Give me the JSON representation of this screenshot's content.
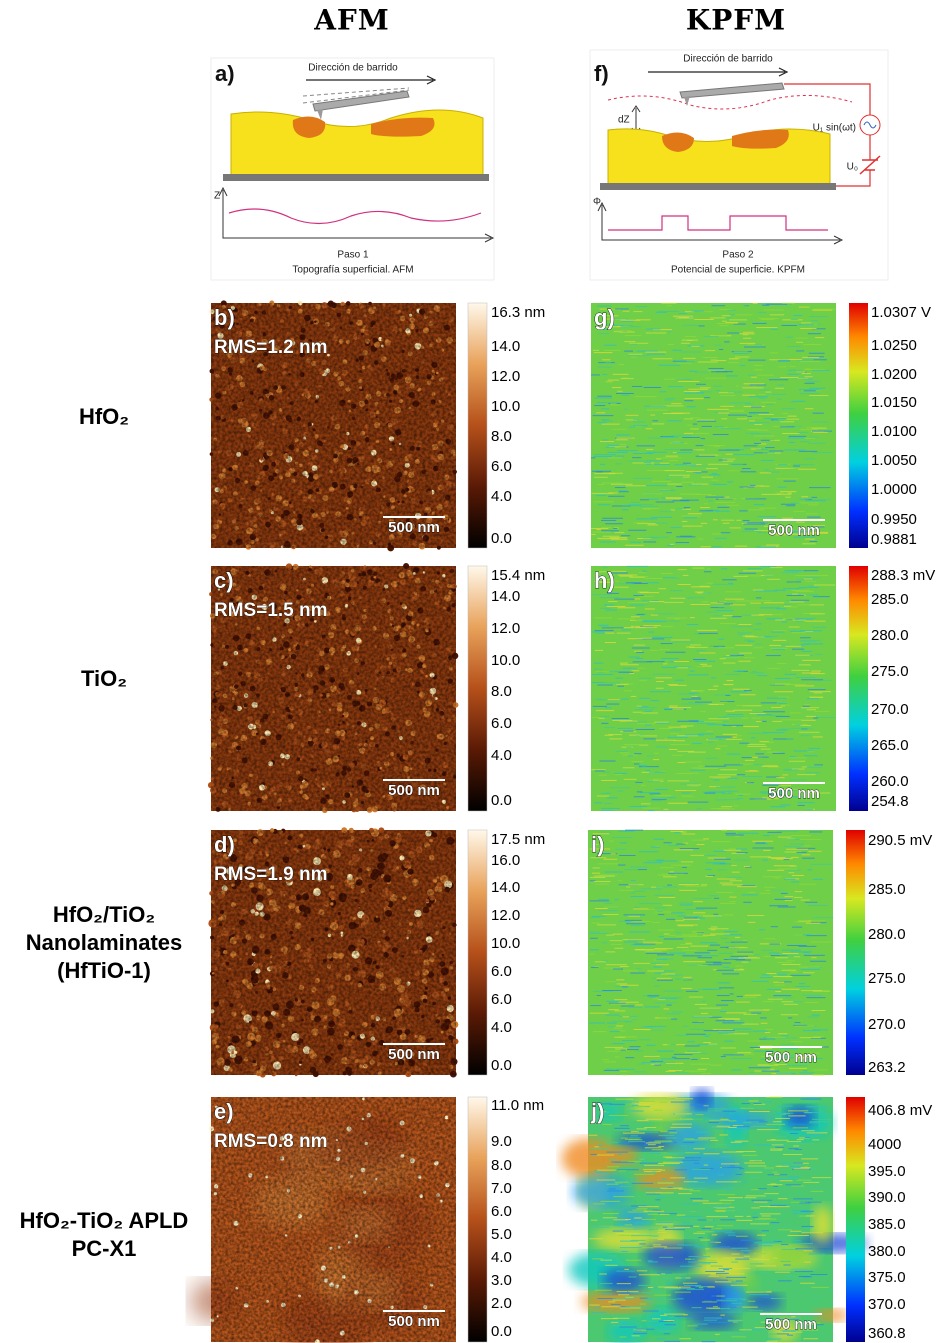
{
  "columns": [
    "AFM",
    "KPFM"
  ],
  "schematics": [
    {
      "label": "a)",
      "scan_direction": "Dirección de barrido",
      "axis_label": "Z",
      "caption": [
        "Paso 1",
        "Topografía superficial. AFM"
      ]
    },
    {
      "label": "f)",
      "scan_direction": "Dirección de barrido",
      "axis_label": "Φ",
      "gap_label": "dZ",
      "ac_label": "U₁ sin(ωt)",
      "dc_label": "U₀",
      "caption": [
        "Paso 2",
        "Potencial de superficie. KPFM"
      ]
    }
  ],
  "rows": [
    {
      "material": [
        "HfO₂"
      ],
      "afm": {
        "label": "b)",
        "rms": "RMS=1.2 nm",
        "scale_bar": "500 nm",
        "colorbar": [
          "16.3 nm",
          "14.0",
          "12.0",
          "10.0",
          "8.0",
          "6.0",
          "4.0",
          "0.0"
        ]
      },
      "kpfm": {
        "label": "g)",
        "scale_bar": "500 nm",
        "colorbar": [
          "1.0307 V",
          "1.0250",
          "1.0200",
          "1.0150",
          "1.0100",
          "1.0050",
          "1.0000",
          "0.9950",
          "0.9881"
        ]
      }
    },
    {
      "material": [
        "TiO₂"
      ],
      "afm": {
        "label": "c)",
        "rms": "RMS=1.5 nm",
        "scale_bar": "500 nm",
        "colorbar": [
          "15.4 nm",
          "14.0",
          "12.0",
          "10.0",
          "8.0",
          "6.0",
          "4.0",
          "0.0"
        ]
      },
      "kpfm": {
        "label": "h)",
        "scale_bar": "500 nm",
        "colorbar": [
          "288.3 mV",
          "285.0",
          "280.0",
          "275.0",
          "270.0",
          "265.0",
          "260.0",
          "254.8"
        ]
      }
    },
    {
      "material": [
        "HfO₂/TiO₂",
        "Nanolaminates",
        "(HfTiO-1)"
      ],
      "afm": {
        "label": "d)",
        "rms": "RMS=1.9 nm",
        "scale_bar": "500 nm",
        "colorbar": [
          "17.5 nm",
          "16.0",
          "14.0",
          "12.0",
          "10.0",
          "6.0",
          "6.0",
          "4.0",
          "0.0"
        ]
      },
      "kpfm": {
        "label": "i)",
        "scale_bar": "500 nm",
        "colorbar": [
          "290.5 mV",
          "285.0",
          "280.0",
          "275.0",
          "270.0",
          "263.2"
        ]
      }
    },
    {
      "material": [
        "HfO₂-TiO₂ APLD",
        "PC-X1"
      ],
      "afm": {
        "label": "e)",
        "rms": "RMS=0.8 nm",
        "scale_bar": "500 nm",
        "colorbar": [
          "11.0 nm",
          "9.0",
          "8.0",
          "7.0",
          "6.0",
          "5.0",
          "4.0",
          "3.0",
          "2.0",
          "0.0"
        ]
      },
      "kpfm": {
        "label": "j)",
        "scale_bar": "500 nm",
        "colorbar": [
          "406.8 mV",
          "4000",
          "395.0",
          "390.0",
          "385.0",
          "380.0",
          "375.0",
          "370.0",
          "360.8"
        ]
      }
    }
  ]
}
